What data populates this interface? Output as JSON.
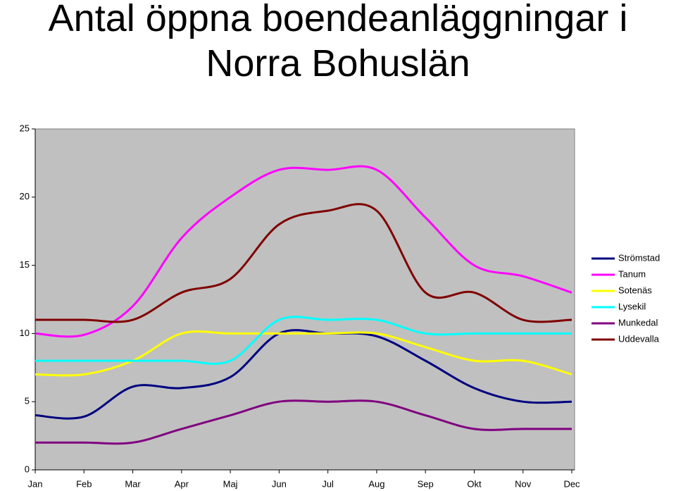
{
  "chart_data": {
    "type": "line",
    "title": "Antal öppna boendeanläggningar i Norra Bohuslän",
    "categories": [
      "Jan",
      "Feb",
      "Mar",
      "Apr",
      "Maj",
      "Jun",
      "Jul",
      "Aug",
      "Sep",
      "Okt",
      "Nov",
      "Dec"
    ],
    "series": [
      {
        "name": "Strömstad",
        "color": "#000080",
        "values": [
          4.0,
          3.9,
          6.1,
          6.0,
          6.8,
          10.0,
          10.0,
          9.8,
          8.0,
          6.0,
          5.0,
          5.0
        ]
      },
      {
        "name": "Tanum",
        "color": "#ff00ff",
        "values": [
          10.0,
          9.9,
          12.0,
          17.0,
          20.0,
          22.0,
          22.0,
          22.0,
          18.5,
          15.0,
          14.2,
          13.0
        ]
      },
      {
        "name": "Sotenäs",
        "color": "#ffff00",
        "values": [
          7.0,
          7.0,
          8.0,
          10.0,
          10.0,
          10.0,
          10.0,
          10.0,
          9.0,
          8.0,
          8.0,
          7.0
        ]
      },
      {
        "name": "Lysekil",
        "color": "#00ffff",
        "values": [
          8.0,
          8.0,
          8.0,
          8.0,
          8.0,
          11.0,
          11.0,
          11.0,
          10.0,
          10.0,
          10.0,
          10.0
        ]
      },
      {
        "name": "Munkedal",
        "color": "#800080",
        "values": [
          2.0,
          2.0,
          2.0,
          3.0,
          4.0,
          5.0,
          5.0,
          5.0,
          4.0,
          3.0,
          3.0,
          3.0
        ]
      },
      {
        "name": "Uddevalla",
        "color": "#800000",
        "values": [
          11.0,
          11.0,
          11.0,
          13.0,
          14.0,
          18.0,
          19.0,
          19.0,
          13.0,
          13.0,
          11.0,
          11.0
        ]
      }
    ],
    "ylim": [
      0,
      25
    ],
    "yticks": [
      0,
      5,
      10,
      15,
      20,
      25
    ],
    "grid": false,
    "legend": "right"
  }
}
